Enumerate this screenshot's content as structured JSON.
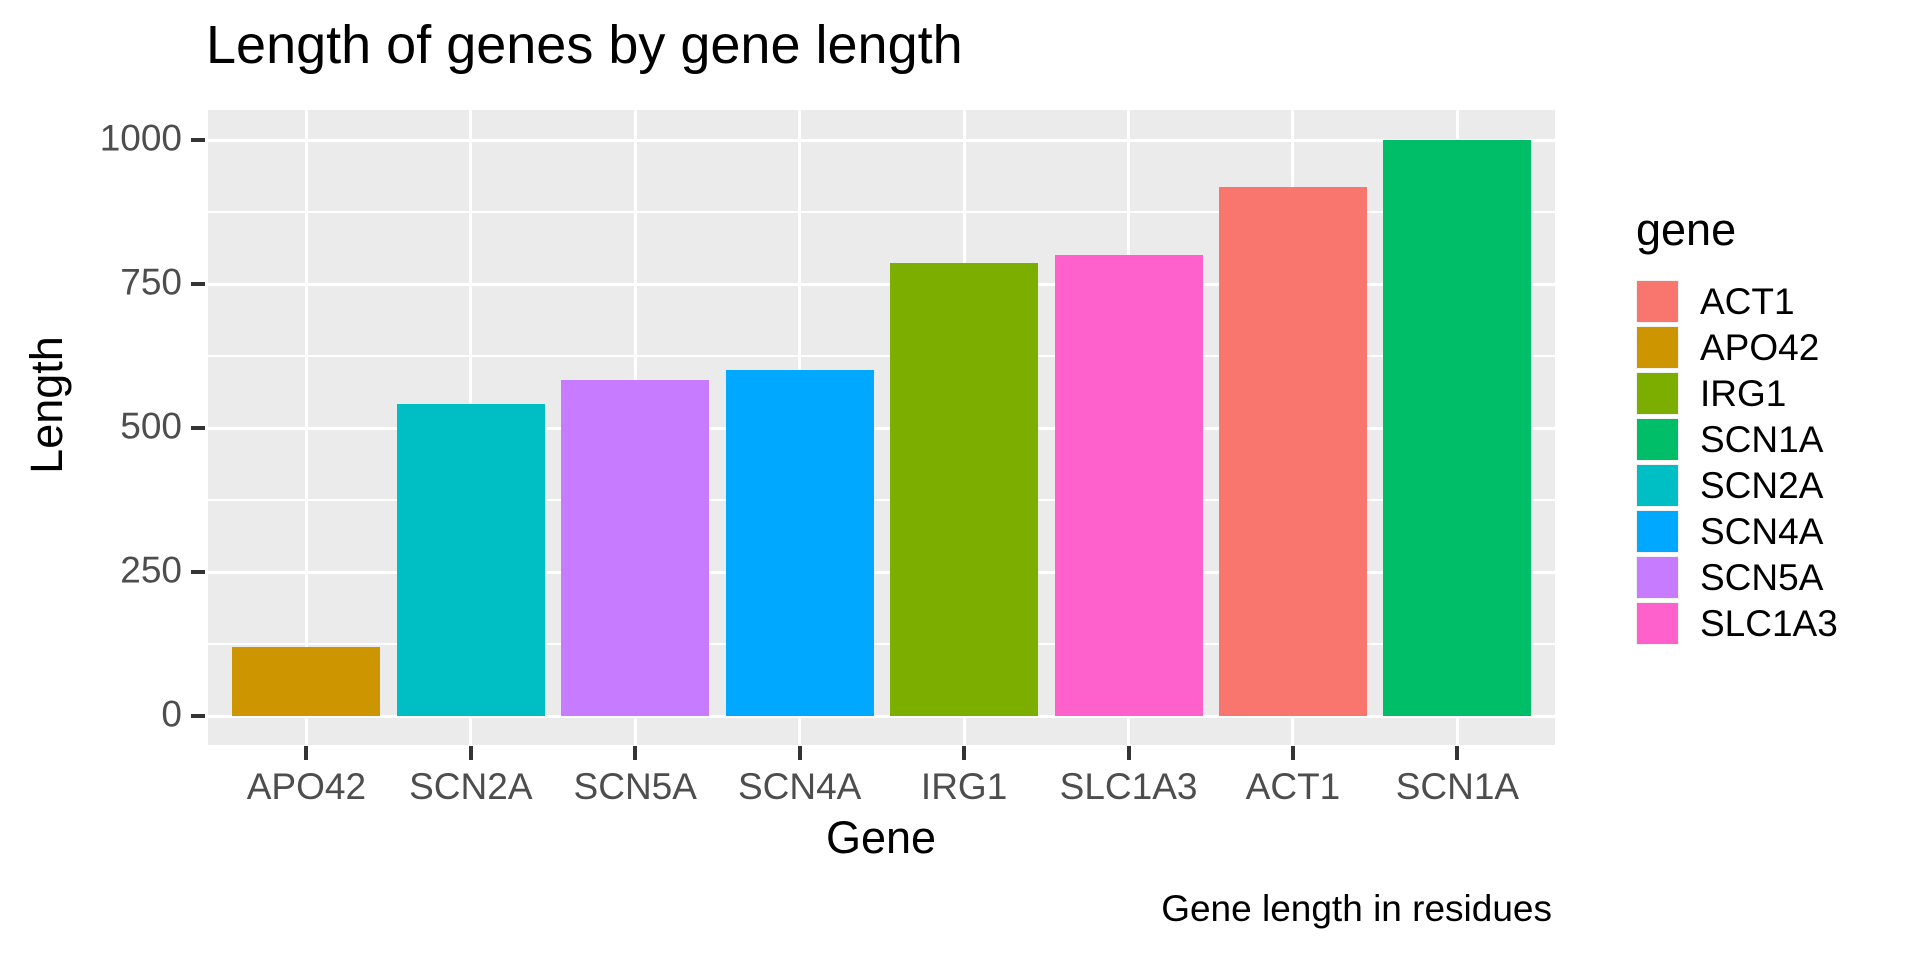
{
  "figure": {
    "title": "Length of genes by gene length",
    "caption": "Gene length in residues",
    "x_axis": {
      "title": "Gene",
      "tick_labels": [
        "APO42",
        "SCN2A",
        "SCN5A",
        "SCN4A",
        "IRG1",
        "SLC1A3",
        "ACT1",
        "SCN1A"
      ]
    },
    "y_axis": {
      "title": "Length",
      "tick_labels": [
        "0",
        "250",
        "500",
        "750",
        "1000"
      ]
    },
    "legend": {
      "title": "gene",
      "entries": [
        {
          "label": "ACT1",
          "color": "#F8766D"
        },
        {
          "label": "APO42",
          "color": "#CD9600"
        },
        {
          "label": "IRG1",
          "color": "#7CAE00"
        },
        {
          "label": "SCN1A",
          "color": "#00BE67"
        },
        {
          "label": "SCN2A",
          "color": "#00BFC4"
        },
        {
          "label": "SCN4A",
          "color": "#00A9FF"
        },
        {
          "label": "SCN5A",
          "color": "#C77CFF"
        },
        {
          "label": "SLC1A3",
          "color": "#FF61CC"
        }
      ]
    }
  },
  "chart_data": {
    "type": "bar",
    "title": "Length of genes by gene length",
    "xlabel": "Gene",
    "ylabel": "Length",
    "caption": "Gene length in residues",
    "categories": [
      "APO42",
      "SCN2A",
      "SCN5A",
      "SCN4A",
      "IRG1",
      "SLC1A3",
      "ACT1",
      "SCN1A"
    ],
    "values": [
      120,
      542,
      584,
      600,
      786,
      800,
      918,
      1000
    ],
    "bar_colors": [
      "#CD9600",
      "#00BFC4",
      "#C77CFF",
      "#00A9FF",
      "#7CAE00",
      "#FF61CC",
      "#F8766D",
      "#00BE67"
    ],
    "ylim": [
      0,
      1050
    ],
    "y_major_ticks": [
      0,
      250,
      500,
      750,
      1000
    ],
    "y_minor_ticks": [
      125,
      375,
      625,
      875
    ],
    "grid": true,
    "legend_position": "right",
    "legend_title": "gene",
    "legend_entries": [
      "ACT1",
      "APO42",
      "IRG1",
      "SCN1A",
      "SCN2A",
      "SCN4A",
      "SCN5A",
      "SLC1A3"
    ],
    "panel_background": "#EBEBEB",
    "grid_color": "#FFFFFF",
    "tick_label_color": "#4D4D4D",
    "tick_mark_color": "#333333"
  }
}
